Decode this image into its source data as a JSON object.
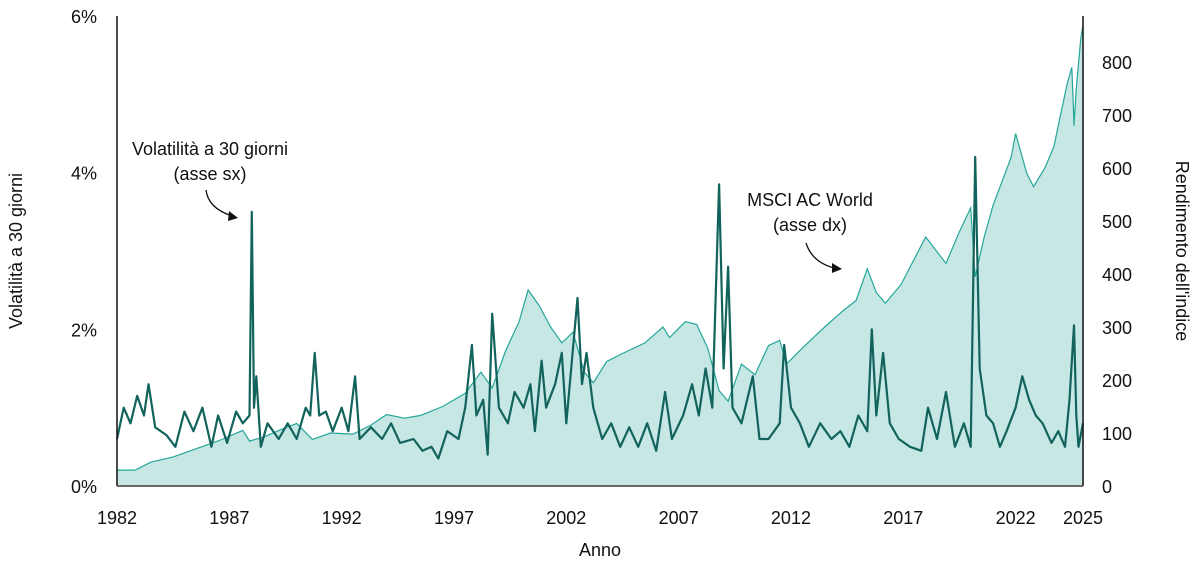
{
  "chart_data": {
    "type": "line",
    "xlabel": "Anno",
    "ylabel_left": "Volatilità a 30 giorni",
    "ylabel_right": "Rendimento dell'indice",
    "xlim": [
      1982,
      2025
    ],
    "ylim_left": [
      0,
      6
    ],
    "ylim_right": [
      0,
      887
    ],
    "x_ticks": [
      "1982",
      "1987",
      "1992",
      "1997",
      "2002",
      "2007",
      "2012",
      "2017",
      "2022",
      "2025"
    ],
    "y_left_ticks": [
      "0%",
      "2%",
      "4%",
      "6%"
    ],
    "y_right_ticks": [
      "0",
      "100",
      "200",
      "300",
      "400",
      "500",
      "600",
      "700",
      "800"
    ],
    "grid": false,
    "colors": {
      "volatility": "#12635c",
      "msci_line": "#26a69a",
      "msci_fill": "#c6e7e4"
    },
    "annotations": [
      {
        "lines": [
          "Volatilità a 30 giorni",
          "(asse sx)"
        ],
        "target_series": "volatility"
      },
      {
        "lines": [
          "MSCI AC World",
          "(asse dx)"
        ],
        "target_series": "msci"
      }
    ],
    "series": [
      {
        "name": "Volatilità a 30 giorni",
        "key": "volatility",
        "axis": "left",
        "unit": "%",
        "points": [
          [
            1982.0,
            0.6
          ],
          [
            1982.3,
            1.0
          ],
          [
            1982.6,
            0.8
          ],
          [
            1982.9,
            1.15
          ],
          [
            1983.2,
            0.9
          ],
          [
            1983.4,
            1.3
          ],
          [
            1983.7,
            0.75
          ],
          [
            1984.2,
            0.65
          ],
          [
            1984.6,
            0.5
          ],
          [
            1985.0,
            0.95
          ],
          [
            1985.4,
            0.7
          ],
          [
            1985.8,
            1.0
          ],
          [
            1986.2,
            0.5
          ],
          [
            1986.5,
            0.9
          ],
          [
            1986.9,
            0.55
          ],
          [
            1987.3,
            0.95
          ],
          [
            1987.6,
            0.8
          ],
          [
            1987.9,
            0.9
          ],
          [
            1988.0,
            3.5
          ],
          [
            1988.1,
            1.0
          ],
          [
            1988.2,
            1.4
          ],
          [
            1988.4,
            0.5
          ],
          [
            1988.7,
            0.8
          ],
          [
            1989.2,
            0.6
          ],
          [
            1989.6,
            0.8
          ],
          [
            1990.0,
            0.6
          ],
          [
            1990.4,
            1.0
          ],
          [
            1990.6,
            0.9
          ],
          [
            1990.8,
            1.7
          ],
          [
            1991.0,
            0.9
          ],
          [
            1991.3,
            0.95
          ],
          [
            1991.6,
            0.7
          ],
          [
            1992.0,
            1.0
          ],
          [
            1992.3,
            0.7
          ],
          [
            1992.6,
            1.4
          ],
          [
            1992.8,
            0.6
          ],
          [
            1993.3,
            0.75
          ],
          [
            1993.8,
            0.6
          ],
          [
            1994.2,
            0.8
          ],
          [
            1994.6,
            0.55
          ],
          [
            1995.2,
            0.6
          ],
          [
            1995.6,
            0.45
          ],
          [
            1996.0,
            0.5
          ],
          [
            1996.3,
            0.35
          ],
          [
            1996.7,
            0.7
          ],
          [
            1997.2,
            0.6
          ],
          [
            1997.5,
            1.0
          ],
          [
            1997.8,
            1.8
          ],
          [
            1998.0,
            0.9
          ],
          [
            1998.3,
            1.1
          ],
          [
            1998.5,
            0.4
          ],
          [
            1998.7,
            2.2
          ],
          [
            1999.0,
            1.0
          ],
          [
            1999.4,
            0.8
          ],
          [
            1999.7,
            1.2
          ],
          [
            2000.1,
            1.0
          ],
          [
            2000.4,
            1.3
          ],
          [
            2000.6,
            0.7
          ],
          [
            2000.9,
            1.6
          ],
          [
            2001.1,
            1.0
          ],
          [
            2001.5,
            1.3
          ],
          [
            2001.8,
            1.7
          ],
          [
            2002.0,
            0.8
          ],
          [
            2002.5,
            2.4
          ],
          [
            2002.7,
            1.3
          ],
          [
            2002.9,
            1.7
          ],
          [
            2003.2,
            1.0
          ],
          [
            2003.6,
            0.6
          ],
          [
            2004.0,
            0.8
          ],
          [
            2004.4,
            0.5
          ],
          [
            2004.8,
            0.75
          ],
          [
            2005.2,
            0.5
          ],
          [
            2005.6,
            0.8
          ],
          [
            2006.0,
            0.45
          ],
          [
            2006.4,
            1.2
          ],
          [
            2006.7,
            0.6
          ],
          [
            2007.2,
            0.9
          ],
          [
            2007.6,
            1.3
          ],
          [
            2007.9,
            0.9
          ],
          [
            2008.2,
            1.5
          ],
          [
            2008.5,
            1.0
          ],
          [
            2008.8,
            3.85
          ],
          [
            2009.0,
            1.5
          ],
          [
            2009.2,
            2.8
          ],
          [
            2009.4,
            1.0
          ],
          [
            2009.8,
            0.8
          ],
          [
            2010.3,
            1.4
          ],
          [
            2010.6,
            0.6
          ],
          [
            2011.0,
            0.6
          ],
          [
            2011.5,
            0.8
          ],
          [
            2011.7,
            1.8
          ],
          [
            2012.0,
            1.0
          ],
          [
            2012.4,
            0.8
          ],
          [
            2012.8,
            0.5
          ],
          [
            2013.3,
            0.8
          ],
          [
            2013.8,
            0.6
          ],
          [
            2014.2,
            0.7
          ],
          [
            2014.6,
            0.5
          ],
          [
            2015.0,
            0.9
          ],
          [
            2015.4,
            0.7
          ],
          [
            2015.6,
            2.0
          ],
          [
            2015.8,
            0.9
          ],
          [
            2016.1,
            1.7
          ],
          [
            2016.4,
            0.8
          ],
          [
            2016.8,
            0.6
          ],
          [
            2017.3,
            0.5
          ],
          [
            2017.8,
            0.45
          ],
          [
            2018.1,
            1.0
          ],
          [
            2018.5,
            0.6
          ],
          [
            2018.9,
            1.2
          ],
          [
            2019.3,
            0.5
          ],
          [
            2019.7,
            0.8
          ],
          [
            2020.0,
            0.5
          ],
          [
            2020.2,
            4.2
          ],
          [
            2020.4,
            1.5
          ],
          [
            2020.7,
            0.9
          ],
          [
            2021.0,
            0.8
          ],
          [
            2021.3,
            0.5
          ],
          [
            2021.6,
            0.7
          ],
          [
            2022.0,
            1.0
          ],
          [
            2022.3,
            1.4
          ],
          [
            2022.6,
            1.1
          ],
          [
            2022.9,
            0.9
          ],
          [
            2023.2,
            0.8
          ],
          [
            2023.6,
            0.55
          ],
          [
            2023.9,
            0.7
          ],
          [
            2024.2,
            0.5
          ],
          [
            2024.4,
            1.1
          ],
          [
            2024.6,
            2.05
          ],
          [
            2024.7,
            0.9
          ],
          [
            2024.8,
            0.5
          ],
          [
            2025.0,
            0.8
          ]
        ]
      },
      {
        "name": "MSCI AC World",
        "key": "msci",
        "axis": "right",
        "points": [
          [
            1982.0,
            30
          ],
          [
            1982.8,
            30
          ],
          [
            1983.5,
            45
          ],
          [
            1984.5,
            55
          ],
          [
            1985.5,
            70
          ],
          [
            1986.5,
            85
          ],
          [
            1987.6,
            105
          ],
          [
            1987.9,
            85
          ],
          [
            1988.5,
            92
          ],
          [
            1989.5,
            110
          ],
          [
            1990.0,
            118
          ],
          [
            1990.7,
            88
          ],
          [
            1991.5,
            100
          ],
          [
            1992.5,
            98
          ],
          [
            1993.3,
            115
          ],
          [
            1994.0,
            135
          ],
          [
            1994.8,
            128
          ],
          [
            1995.5,
            133
          ],
          [
            1996.5,
            150
          ],
          [
            1997.5,
            175
          ],
          [
            1998.2,
            215
          ],
          [
            1998.7,
            185
          ],
          [
            1999.3,
            255
          ],
          [
            1999.9,
            310
          ],
          [
            2000.3,
            370
          ],
          [
            2000.8,
            340
          ],
          [
            2001.3,
            300
          ],
          [
            2001.8,
            270
          ],
          [
            2002.3,
            290
          ],
          [
            2002.8,
            215
          ],
          [
            2003.2,
            195
          ],
          [
            2003.8,
            235
          ],
          [
            2004.5,
            250
          ],
          [
            2005.5,
            270
          ],
          [
            2006.3,
            300
          ],
          [
            2006.6,
            280
          ],
          [
            2007.3,
            310
          ],
          [
            2007.8,
            305
          ],
          [
            2008.3,
            260
          ],
          [
            2008.8,
            180
          ],
          [
            2009.2,
            160
          ],
          [
            2009.8,
            230
          ],
          [
            2010.4,
            210
          ],
          [
            2011.0,
            265
          ],
          [
            2011.5,
            275
          ],
          [
            2011.8,
            230
          ],
          [
            2012.5,
            260
          ],
          [
            2013.5,
            300
          ],
          [
            2014.3,
            330
          ],
          [
            2014.9,
            350
          ],
          [
            2015.4,
            410
          ],
          [
            2015.8,
            365
          ],
          [
            2016.2,
            345
          ],
          [
            2016.9,
            380
          ],
          [
            2018.0,
            470
          ],
          [
            2018.9,
            420
          ],
          [
            2019.5,
            480
          ],
          [
            2020.0,
            525
          ],
          [
            2020.2,
            395
          ],
          [
            2020.6,
            470
          ],
          [
            2021.0,
            530
          ],
          [
            2021.8,
            620
          ],
          [
            2022.0,
            665
          ],
          [
            2022.5,
            590
          ],
          [
            2022.8,
            565
          ],
          [
            2023.3,
            600
          ],
          [
            2023.7,
            640
          ],
          [
            2024.0,
            700
          ],
          [
            2024.3,
            760
          ],
          [
            2024.5,
            790
          ],
          [
            2024.55,
            740
          ],
          [
            2024.6,
            680
          ],
          [
            2024.7,
            750
          ],
          [
            2024.9,
            845
          ],
          [
            2025.0,
            870
          ]
        ]
      }
    ]
  }
}
